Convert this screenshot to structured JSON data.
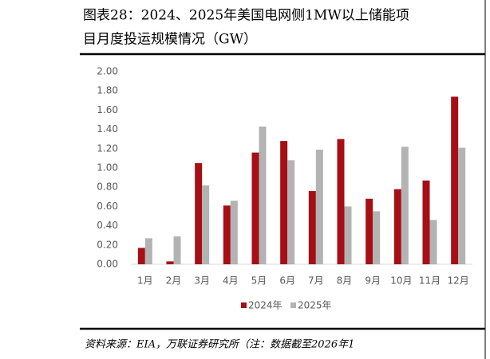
{
  "chart_data": {
    "type": "bar",
    "title": [
      "图表28：2024、2025年美国电网侧1MW以上储能项",
      "目月度投运规模情况（GW）"
    ],
    "categories": [
      "1月",
      "2月",
      "3月",
      "4月",
      "5月",
      "6月",
      "7月",
      "8月",
      "9月",
      "10月",
      "11月",
      "12月"
    ],
    "series": [
      {
        "name": "2024年",
        "color": "#a50f15",
        "values": [
          0.17,
          0.03,
          1.05,
          0.61,
          1.16,
          1.28,
          0.76,
          1.3,
          0.68,
          0.78,
          0.87,
          1.74
        ]
      },
      {
        "name": "2025年",
        "color": "#b3b3b3",
        "values": [
          0.27,
          0.29,
          0.82,
          0.66,
          1.43,
          1.08,
          1.19,
          0.6,
          0.55,
          1.22,
          0.46,
          1.21
        ]
      }
    ],
    "ylim": [
      0,
      2
    ],
    "yticks": [
      {
        "value": 0,
        "label": "0.00"
      },
      {
        "value": 0.2,
        "label": "0.20"
      },
      {
        "value": 0.4,
        "label": "0.40"
      },
      {
        "value": 0.6,
        "label": "0.60"
      },
      {
        "value": 0.8,
        "label": "0.80"
      },
      {
        "value": 1,
        "label": "1.00"
      },
      {
        "value": 1.2,
        "label": "1.20"
      },
      {
        "value": 1.4,
        "label": "1.40"
      },
      {
        "value": 1.6,
        "label": "1.60"
      },
      {
        "value": 1.8,
        "label": "1.80"
      },
      {
        "value": 2,
        "label": "2.00"
      }
    ],
    "grid": false,
    "legend": "bottom",
    "source": "资料来源：EIA，万联证券研究所（注：数据截至2026年1"
  }
}
